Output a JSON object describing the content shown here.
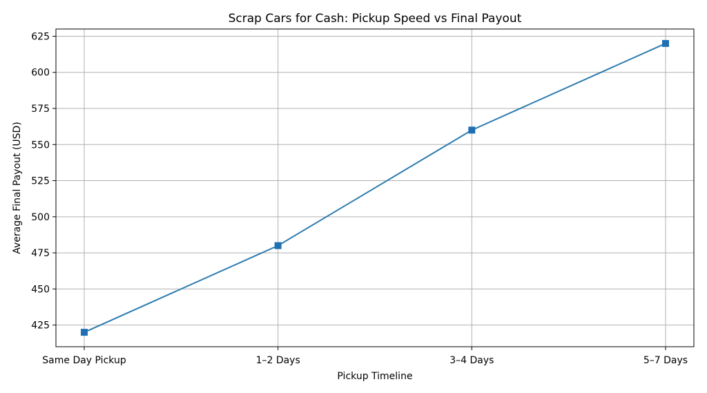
{
  "chart_data": {
    "type": "line",
    "title": "Scrap Cars for Cash: Pickup Speed vs Final Payout",
    "xlabel": "Pickup Timeline",
    "ylabel": "Average Final Payout (USD)",
    "categories": [
      "Same Day Pickup",
      "1–2 Days",
      "3–4 Days",
      "5–7 Days"
    ],
    "series": [
      {
        "values": [
          420,
          480,
          560,
          620
        ]
      }
    ],
    "ylim": [
      410,
      630
    ],
    "yticks": [
      425,
      450,
      475,
      500,
      525,
      550,
      575,
      600,
      625
    ],
    "grid": true,
    "marker": "square",
    "colors": {
      "line": "#2b7bb0",
      "marker": "#1f6fb2"
    }
  }
}
